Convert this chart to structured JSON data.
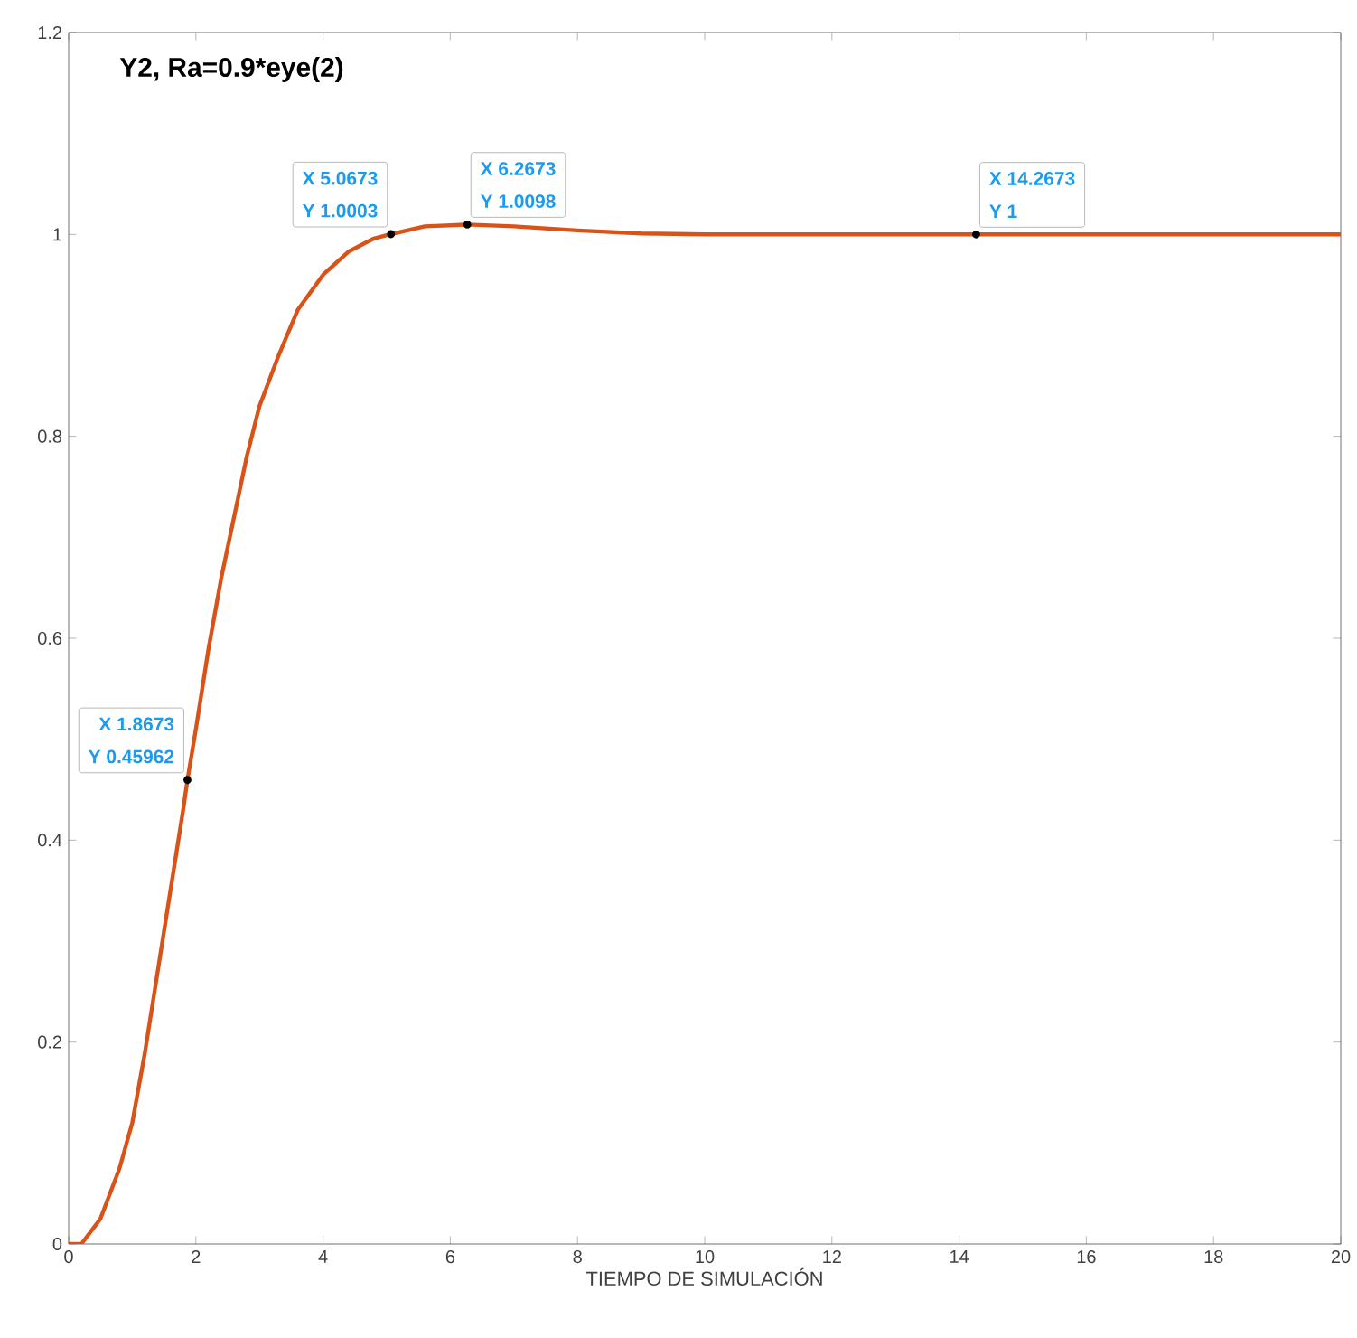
{
  "chart_data": {
    "type": "line",
    "title": "**Y2, Ra=0.9*eye(2)**",
    "xlabel": "TIEMPO DE SIMULACIÓN",
    "x": [
      0,
      0.2,
      0.5,
      0.8,
      1.0,
      1.2,
      1.4,
      1.6,
      1.8,
      1.8673,
      2.0,
      2.2,
      2.4,
      2.6,
      2.8,
      3.0,
      3.3,
      3.6,
      4.0,
      4.4,
      4.8,
      5.0673,
      5.6,
      6.2673,
      7.0,
      8.0,
      9.0,
      10.0,
      14.2673,
      20.0
    ],
    "series": [
      {
        "color": "#d95319",
        "values": [
          0,
          0.0,
          0.025,
          0.075,
          0.12,
          0.19,
          0.27,
          0.35,
          0.43,
          0.45962,
          0.51,
          0.59,
          0.66,
          0.72,
          0.78,
          0.83,
          0.88,
          0.925,
          0.96,
          0.983,
          0.996,
          1.0003,
          1.008,
          1.0098,
          1.008,
          1.004,
          1.001,
          1.0,
          1,
          1.0
        ]
      }
    ],
    "xlim": [
      0,
      20
    ],
    "ylim": [
      0,
      1.2
    ],
    "xticks": [
      0,
      2,
      4,
      6,
      8,
      10,
      12,
      14,
      16,
      18,
      20
    ],
    "yticks": [
      0,
      0.2,
      0.4,
      0.6,
      0.8,
      1,
      1.2
    ],
    "grid": false,
    "marker": "none",
    "line_style": "solid",
    "annotations": [
      {
        "text": "X 1.8673",
        "x": 1.8673,
        "y": 0.45962
      },
      {
        "text": "Y 0.45962",
        "x": 1.8673,
        "y": 0.45962
      },
      {
        "text": "X 5.0673",
        "x": 5.0673,
        "y": 1.0003
      },
      {
        "text": "Y 1.0003",
        "x": 5.0673,
        "y": 1.0003
      },
      {
        "text": "X 6.2673",
        "x": 6.2673,
        "y": 1.0098
      },
      {
        "text": "Y 1.0098",
        "x": 6.2673,
        "y": 1.0098
      },
      {
        "text": "X 14.2673",
        "x": 14.2673,
        "y": 1
      },
      {
        "text": "Y 1",
        "x": 14.2673,
        "y": 1
      }
    ]
  }
}
